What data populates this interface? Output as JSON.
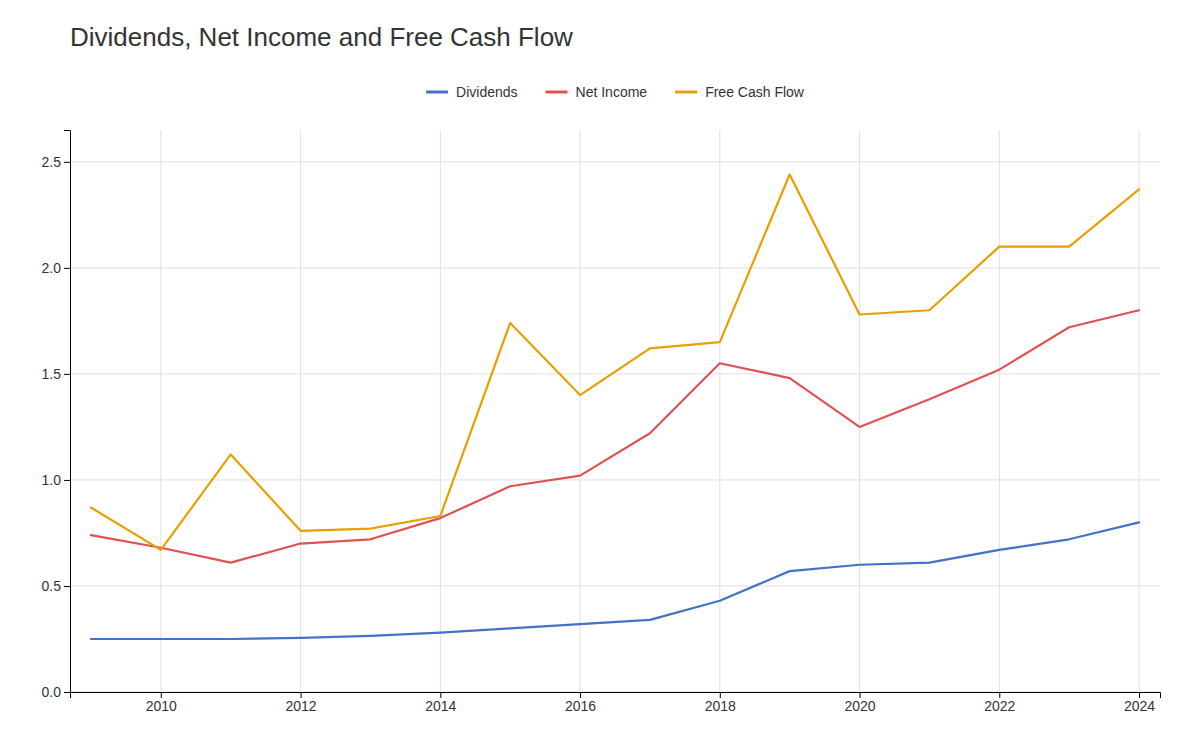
{
  "chart_data": {
    "type": "line",
    "title": "Dividends, Net Income and Free Cash Flow",
    "x": [
      2009,
      2010,
      2011,
      2012,
      2013,
      2014,
      2015,
      2016,
      2017,
      2018,
      2019,
      2020,
      2021,
      2022,
      2023,
      2024
    ],
    "series": [
      {
        "name": "Dividends",
        "color": "#4472c4",
        "values": [
          0.25,
          0.25,
          0.25,
          0.255,
          0.265,
          0.28,
          0.3,
          0.32,
          0.34,
          0.43,
          0.57,
          0.6,
          0.61,
          0.67,
          0.72,
          0.8
        ]
      },
      {
        "name": "Net Income",
        "color": "#e05252",
        "values": [
          0.74,
          0.68,
          0.61,
          0.7,
          0.72,
          0.82,
          0.97,
          1.02,
          1.22,
          1.55,
          1.48,
          1.25,
          1.38,
          1.52,
          1.72,
          1.8
        ]
      },
      {
        "name": "Free Cash Flow",
        "color": "#e8a000",
        "values": [
          0.87,
          0.67,
          1.12,
          0.76,
          0.77,
          0.83,
          1.74,
          1.4,
          1.62,
          1.65,
          2.44,
          1.78,
          1.8,
          2.1,
          2.1,
          2.37
        ]
      }
    ],
    "xlim": [
      2008.7,
      2024.3
    ],
    "xticks": [
      2010,
      2012,
      2014,
      2016,
      2018,
      2020,
      2022,
      2024
    ],
    "ylim": [
      0,
      2.65
    ],
    "yticks": [
      {
        "value": 0,
        "label": "0.0"
      },
      0.5,
      {
        "value": 1,
        "label": "1.0"
      },
      1.5,
      {
        "value": 2,
        "label": "2.0"
      },
      2.5
    ],
    "grid": true,
    "legend": "top"
  }
}
